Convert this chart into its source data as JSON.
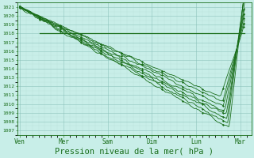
{
  "bg_color": "#c8eee8",
  "grid_color_major": "#88c0b8",
  "grid_color_minor": "#b0d8d0",
  "line_color": "#1a6e1a",
  "ylim_min": 1006.5,
  "ylim_max": 1021.5,
  "yticks": [
    1007,
    1008,
    1009,
    1010,
    1011,
    1012,
    1013,
    1014,
    1015,
    1016,
    1017,
    1018,
    1019,
    1020,
    1021
  ],
  "xlabel": "Pression niveau de la mer( hPa )",
  "xlabel_fontsize": 7.5,
  "xtick_labels": [
    "Ven",
    "Mer",
    "Sam",
    "Dim",
    "Lun",
    "Mar"
  ],
  "xtick_positions": [
    0,
    1,
    2,
    3,
    4,
    5
  ],
  "xlim_min": -0.05,
  "xlim_max": 5.25,
  "flat_line_y": 1018.0,
  "flat_line_x_start": 0.45,
  "flat_line_x_end": 5.1
}
